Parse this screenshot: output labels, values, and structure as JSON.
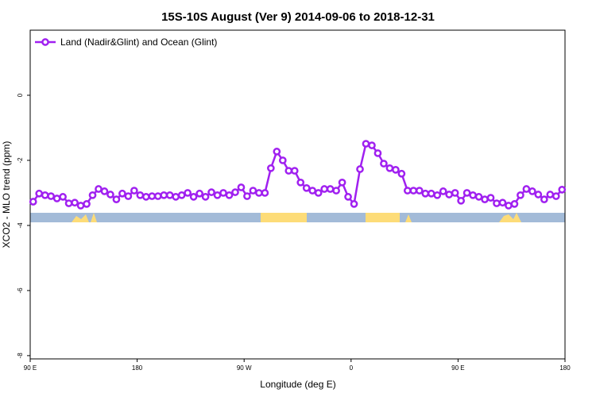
{
  "chart_data": {
    "type": "line",
    "title": "15S-10S August (Ver 9)   2014-09-06 to 2018-12-31",
    "xlabel": "Longitude (deg E)",
    "ylabel": "XCO2 - MLO trend (ppm)",
    "xlim": [
      90,
      540
    ],
    "ylim": [
      -8.1,
      2
    ],
    "xticks": [
      {
        "value": 90,
        "label": "90 E"
      },
      180,
      {
        "value": 270,
        "label": "90 W"
      },
      {
        "value": 360,
        "label": "0"
      },
      {
        "value": 450,
        "label": "90 E"
      },
      {
        "value": 540,
        "label": "180"
      }
    ],
    "yticks": [
      0,
      -2,
      -4,
      -6,
      -8
    ],
    "legend": "top-left",
    "x": [
      92.5,
      97.5,
      102.5,
      107.5,
      112.5,
      117.5,
      122.5,
      127.5,
      132.5,
      137.5,
      142.5,
      147.5,
      152.5,
      157.5,
      162.5,
      167.5,
      172.5,
      177.5,
      182.5,
      187.5,
      192.5,
      197.5,
      202.5,
      207.5,
      212.5,
      217.5,
      222.5,
      227.5,
      232.5,
      237.5,
      242.5,
      247.5,
      252.5,
      257.5,
      262.5,
      267.5,
      272.5,
      277.5,
      282.5,
      287.5,
      292.5,
      297.5,
      302.5,
      307.5,
      312.5,
      317.5,
      322.5,
      327.5,
      332.5,
      337.5,
      342.5,
      347.5,
      352.5,
      357.5,
      362.5,
      367.5,
      372.5,
      377.5,
      382.5,
      387.5,
      392.5,
      397.5,
      402.5,
      407.5,
      412.5,
      417.5,
      422.5,
      427.5,
      432.5,
      437.5,
      442.5,
      447.5,
      452.5,
      457.5,
      462.5,
      467.5,
      472.5,
      477.5,
      482.5,
      487.5,
      492.5,
      497.5,
      502.5,
      507.5,
      512.5,
      517.5,
      522.5,
      527.5,
      532.5,
      537.5
    ],
    "series": [
      {
        "name": "Land (Nadir&Glint) and Ocean (Glint)",
        "color": "#a020f0",
        "values": [
          -3.27,
          -3.02,
          -3.07,
          -3.1,
          -3.17,
          -3.12,
          -3.32,
          -3.3,
          -3.39,
          -3.34,
          -3.07,
          -2.88,
          -2.95,
          -3.05,
          -3.2,
          -3.02,
          -3.1,
          -2.93,
          -3.07,
          -3.12,
          -3.1,
          -3.1,
          -3.07,
          -3.07,
          -3.12,
          -3.07,
          -3.0,
          -3.12,
          -3.02,
          -3.12,
          -2.98,
          -3.07,
          -3.0,
          -3.07,
          -2.98,
          -2.83,
          -3.1,
          -2.93,
          -3.0,
          -3.0,
          -2.24,
          -1.73,
          -2.0,
          -2.32,
          -2.32,
          -2.68,
          -2.85,
          -2.93,
          -3.0,
          -2.88,
          -2.88,
          -2.93,
          -2.68,
          -3.12,
          -3.34,
          -2.27,
          -1.49,
          -1.54,
          -1.78,
          -2.1,
          -2.24,
          -2.29,
          -2.41,
          -2.93,
          -2.93,
          -2.93,
          -3.02,
          -3.02,
          -3.07,
          -2.95,
          -3.05,
          -3.0,
          -3.24,
          -3.0,
          -3.07,
          -3.12,
          -3.2,
          -3.15,
          -3.32,
          -3.3,
          -3.39,
          -3.34,
          -3.07,
          -2.88,
          -2.95,
          -3.05,
          -3.2,
          -3.05,
          -3.1,
          -2.9
        ]
      }
    ]
  }
}
